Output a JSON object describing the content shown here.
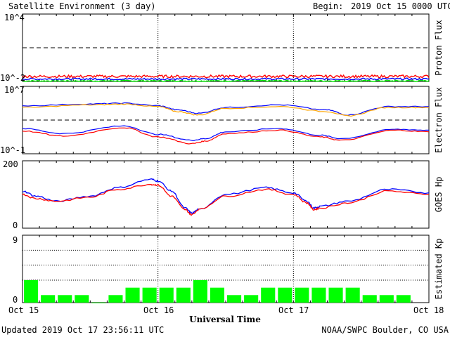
{
  "header": {
    "title": "Satellite Environment (3 day)",
    "begin_label": "Begin:",
    "begin_value": "2019 Oct 15 0000 UTC"
  },
  "footer": {
    "updated": "Updated 2019 Oct 17 23:56:11 UTC",
    "credit": "NOAA/SWPC Boulder, CO USA"
  },
  "colors": {
    "red": "#ff0000",
    "blue": "#0000ff",
    "green": "#00ee00",
    "orange": "#ffa500",
    "frame": "#000000",
    "kp_bar": "#00ff00"
  },
  "chart_data": [
    {
      "type": "line",
      "name": "proton_flux",
      "ylabel": "Proton Flux",
      "yscale": "log",
      "ylim_exp": [
        -2,
        4
      ],
      "y_tick_labels": [
        "10^4",
        "10^-2"
      ],
      "threshold_exp": 1,
      "x_days": [
        0,
        3
      ],
      "series": [
        {
          "color": "red",
          "base_exp": -1.55,
          "noise": 0.12
        },
        {
          "color": "blue",
          "base_exp": -1.78,
          "noise": 0.08
        },
        {
          "color": "green",
          "base_exp": -1.95,
          "noise": 0.06
        }
      ]
    },
    {
      "type": "line",
      "name": "electron_flux",
      "ylabel": "Electron Flux",
      "yscale": "log",
      "ylim_exp": [
        -1,
        7
      ],
      "y_tick_labels": [
        "10^7",
        "10^-1"
      ],
      "threshold_exp": 3,
      "series": [
        {
          "color": "blue",
          "x": [
            0,
            0.5,
            0.75,
            1.0,
            1.15,
            1.3,
            1.5,
            1.9,
            2.25,
            2.4,
            2.7,
            3.0
          ],
          "y_exp": [
            4.7,
            4.9,
            5.0,
            4.7,
            4.2,
            3.8,
            4.5,
            4.8,
            4.2,
            3.6,
            4.6,
            4.6
          ]
        },
        {
          "color": "orange",
          "x": [
            0,
            0.5,
            0.75,
            1.0,
            1.15,
            1.3,
            1.5,
            1.9,
            2.25,
            2.4,
            2.7,
            3.0
          ],
          "y_exp": [
            4.5,
            4.8,
            4.9,
            4.6,
            4.0,
            3.6,
            4.4,
            4.6,
            4.0,
            3.5,
            4.5,
            4.5
          ]
        },
        {
          "color": "blue",
          "x": [
            0,
            0.3,
            0.75,
            1.0,
            1.25,
            1.35,
            1.5,
            1.9,
            2.2,
            2.35,
            2.75,
            3.0
          ],
          "y_exp": [
            2.0,
            1.4,
            2.3,
            1.3,
            0.6,
            0.8,
            1.6,
            2.0,
            1.2,
            0.8,
            1.9,
            1.8
          ]
        },
        {
          "color": "red",
          "x": [
            0,
            0.3,
            0.75,
            1.0,
            1.25,
            1.35,
            1.5,
            1.9,
            2.2,
            2.35,
            2.75,
            3.0
          ],
          "y_exp": [
            1.7,
            1.1,
            2.1,
            1.0,
            0.2,
            0.5,
            1.4,
            1.8,
            1.0,
            0.6,
            1.8,
            1.6
          ]
        }
      ]
    },
    {
      "type": "line",
      "name": "goes_hp",
      "ylabel": "GOES Hp",
      "ylim": [
        0,
        200
      ],
      "y_tick_labels": [
        "200",
        "0"
      ],
      "series": [
        {
          "color": "blue",
          "x": [
            0,
            0.1,
            0.25,
            0.5,
            0.7,
            0.95,
            1.0,
            1.1,
            1.2,
            1.25,
            1.3,
            1.5,
            1.8,
            2.0,
            2.1,
            2.15,
            2.2,
            2.4,
            2.7,
            3.0
          ],
          "y": [
            110,
            95,
            80,
            95,
            120,
            145,
            140,
            110,
            60,
            45,
            55,
            100,
            120,
            105,
            80,
            60,
            65,
            80,
            115,
            105
          ]
        },
        {
          "color": "red",
          "x": [
            0,
            0.1,
            0.25,
            0.5,
            0.7,
            0.95,
            1.0,
            1.1,
            1.2,
            1.25,
            1.3,
            1.5,
            1.8,
            2.0,
            2.1,
            2.15,
            2.2,
            2.4,
            2.7,
            3.0
          ],
          "y": [
            100,
            88,
            80,
            92,
            115,
            130,
            128,
            95,
            55,
            40,
            55,
            95,
            115,
            100,
            75,
            55,
            60,
            75,
            110,
            100
          ]
        }
      ]
    },
    {
      "type": "bar",
      "name": "estimated_kp",
      "ylabel": "Estimated Kp",
      "ylim": [
        0,
        9
      ],
      "y_tick_labels": [
        "9",
        "0"
      ],
      "values": [
        3,
        1,
        1,
        1,
        0,
        1,
        2,
        2,
        2,
        2,
        3,
        2,
        1,
        1,
        2,
        2,
        2,
        2,
        2,
        2,
        1,
        1,
        1
      ]
    }
  ],
  "x_axis": {
    "title": "Universal Time",
    "labels": [
      "Oct 15",
      "Oct 16",
      "Oct 17",
      "Oct 18"
    ]
  }
}
